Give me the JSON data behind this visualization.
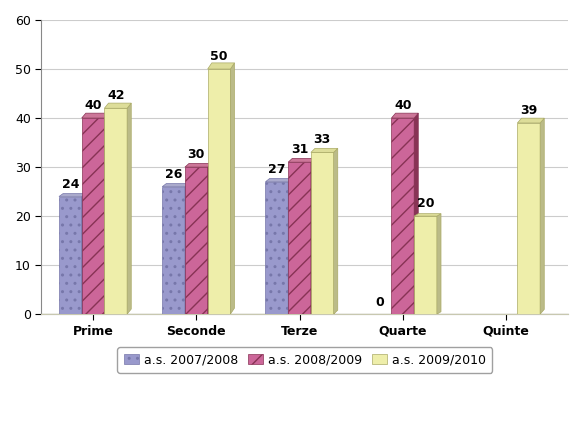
{
  "categories": [
    "Prime",
    "Seconde",
    "Terze",
    "Quarte",
    "Quinte"
  ],
  "series": {
    "a.s. 2007/2008": [
      24,
      26,
      27,
      0,
      0
    ],
    "a.s. 2008/2009": [
      40,
      30,
      31,
      40,
      0
    ],
    "a.s. 2009/2010": [
      42,
      50,
      33,
      20,
      39
    ]
  },
  "colors": {
    "a.s. 2007/2008": "#9999cc",
    "a.s. 2008/2009": "#cc6699",
    "a.s. 2009/2010": "#eeeeaa"
  },
  "hatch": {
    "a.s. 2007/2008": "..",
    "a.s. 2008/2009": "//",
    "a.s. 2009/2010": ""
  },
  "hatch_colors": {
    "a.s. 2007/2008": "#aaaadd",
    "a.s. 2008/2009": "#993366",
    "a.s. 2009/2010": "#cccc88"
  },
  "edgecolors": {
    "a.s. 2007/2008": "#7777aa",
    "a.s. 2008/2009": "#883355",
    "a.s. 2009/2010": "#aaaa66"
  },
  "side_colors": {
    "a.s. 2007/2008": "#7777aa",
    "a.s. 2008/2009": "#883355",
    "a.s. 2009/2010": "#bbbb88"
  },
  "top_colors": {
    "a.s. 2007/2008": "#aaaacc",
    "a.s. 2008/2009": "#cc7799",
    "a.s. 2009/2010": "#dddd99"
  },
  "ylim": [
    0,
    60
  ],
  "yticks": [
    0,
    10,
    20,
    30,
    40,
    50,
    60
  ],
  "bar_width": 0.22,
  "background_color": "#ffffff",
  "plot_background": "#ffffff",
  "grid_color": "#cccccc",
  "label_fontsize": 9,
  "tick_fontsize": 9,
  "legend_fontsize": 9,
  "depth": 0.06
}
